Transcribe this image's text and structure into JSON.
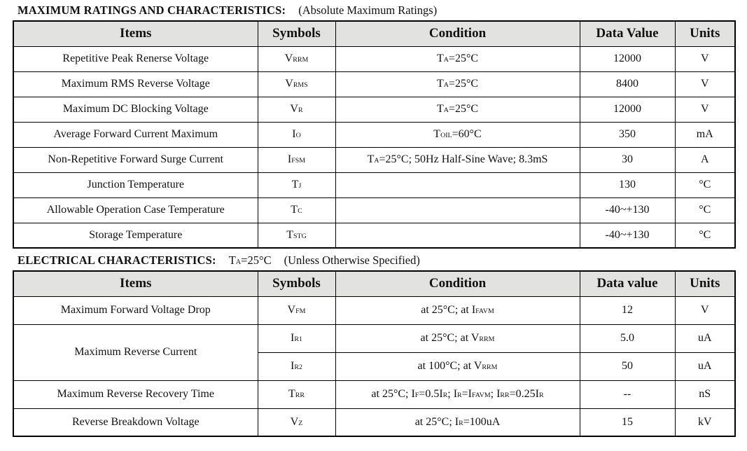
{
  "colors": {
    "header_bg": "#e2e2e0",
    "border": "#000000",
    "text": "#111111",
    "page_bg": "#ffffff"
  },
  "table1": {
    "title": "MAXIMUM RATINGS AND CHARACTERISTICS:",
    "subtitle": "(Absolute Maximum Ratings)",
    "headers": [
      "Items",
      "Symbols",
      "Condition",
      "Data Value",
      "Units"
    ],
    "rows": [
      {
        "item": "Repetitive Peak Renerse Voltage",
        "symbol": "V{RRM}",
        "condition": "T{A}=25°C",
        "value": "12000",
        "units": "V"
      },
      {
        "item": "Maximum RMS Reverse Voltage",
        "symbol": "V{RMS}",
        "condition": "T{A}=25°C",
        "value": "8400",
        "units": "V"
      },
      {
        "item": "Maximum DC Blocking Voltage",
        "symbol": "V{R}",
        "condition": "T{A}=25°C",
        "value": "12000",
        "units": "V"
      },
      {
        "item": "Average Forward Current Maximum",
        "symbol": "I{O}",
        "condition": "T{OIL}=60°C",
        "value": "350",
        "units": "mA"
      },
      {
        "item": "Non-Repetitive Forward Surge Current",
        "symbol": "I{FSM}",
        "condition": "T{A}=25°C; 50Hz Half-Sine Wave; 8.3mS",
        "value": "30",
        "units": "A"
      },
      {
        "item": "Junction Temperature",
        "symbol": "T{J}",
        "condition": "",
        "value": "130",
        "units": "°C"
      },
      {
        "item": "Allowable Operation Case Temperature",
        "symbol": "T{C}",
        "condition": "",
        "value": "-40~+130",
        "units": "°C"
      },
      {
        "item": "Storage Temperature",
        "symbol": "T{STG}",
        "condition": "",
        "value": "-40~+130",
        "units": "°C"
      }
    ]
  },
  "table2": {
    "title": "ELECTRICAL CHARACTERISTICS:",
    "condition_note": "T{A}=25°C",
    "subtitle": "(Unless Otherwise Specified)",
    "headers": [
      "Items",
      "Symbols",
      "Condition",
      "Data value",
      "Units"
    ],
    "rows": [
      {
        "item": "Maximum Forward Voltage Drop",
        "symbol": "V{FM}",
        "condition": "at 25°C; at I{FAVM}",
        "value": "12",
        "units": "V"
      },
      {
        "item": "Maximum Reverse Current",
        "symbol": "I{R1}",
        "condition": "at 25°C; at V{RRM}",
        "value": "5.0",
        "units": "uA"
      },
      {
        "item": "",
        "symbol": "I{R2}",
        "condition": "at 100°C; at V{RRM}",
        "value": "50",
        "units": "uA"
      },
      {
        "item": "Maximum Reverse Recovery Time",
        "symbol": "T{RR}",
        "condition": "at 25°C; I{F}=0.5I{R}; I{R}=I{FAVM}; I{RR}=0.25I{R}",
        "value": "--",
        "units": "nS"
      },
      {
        "item": "Reverse Breakdown Voltage",
        "symbol": "V{Z}",
        "condition": "at 25°C; I{R}=100uA",
        "value": "15",
        "units": "kV"
      }
    ]
  }
}
